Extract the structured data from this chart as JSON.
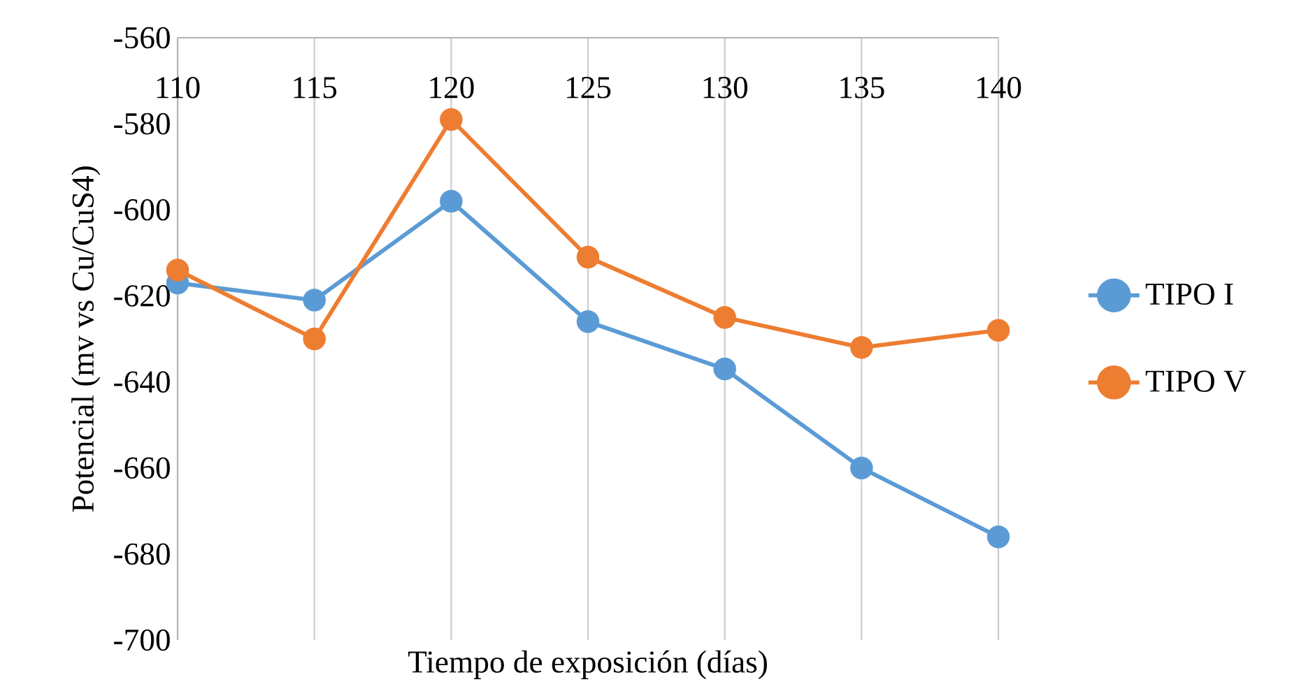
{
  "chart_data": {
    "type": "line",
    "xlabel": "Tiempo de exposición (días)",
    "ylabel": "Potencial (mv vs Cu/CuS4)",
    "x": [
      110,
      115,
      120,
      125,
      130,
      135,
      140
    ],
    "series": [
      {
        "name": "TIPO I",
        "color": "#5b9bd5",
        "values": [
          -617,
          -621,
          -598,
          -626,
          -637,
          -660,
          -676
        ]
      },
      {
        "name": "TIPO V",
        "color": "#ed7d31",
        "values": [
          -614,
          -630,
          -579,
          -611,
          -625,
          -632,
          -628
        ]
      }
    ],
    "xlim": [
      110,
      140
    ],
    "xticks": [
      110,
      115,
      120,
      125,
      130,
      135,
      140
    ],
    "ylim": [
      -700,
      -560
    ],
    "yticks": [
      -700,
      -680,
      -660,
      -640,
      -620,
      -600,
      -580,
      -560
    ],
    "grid": "x",
    "legend": "right",
    "marker": "circle",
    "line_style": "solid"
  }
}
